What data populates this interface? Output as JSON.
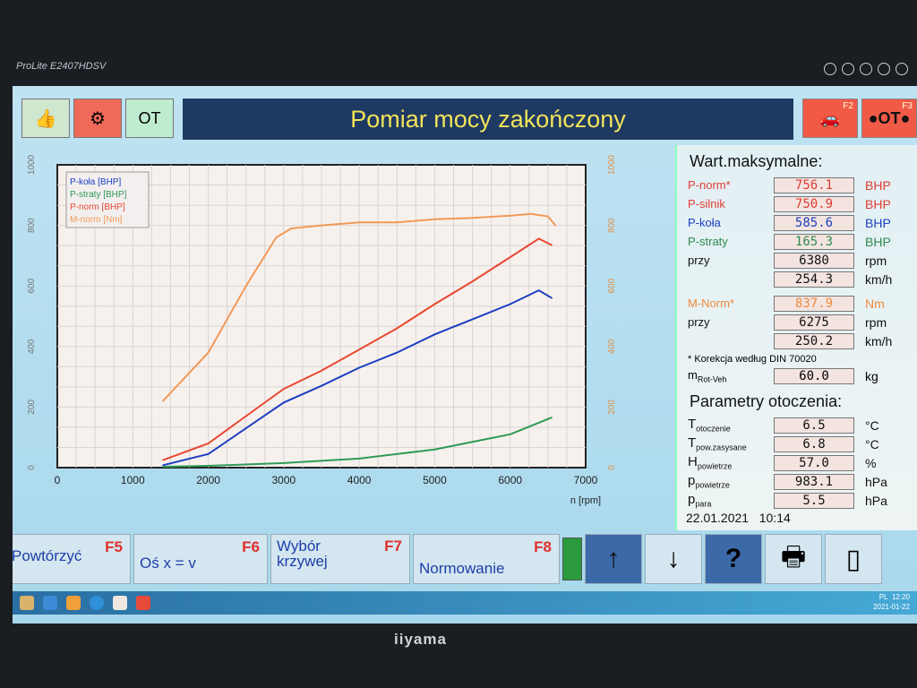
{
  "monitor": {
    "model": "ProLite E2407HDSV",
    "brand": "iiyama"
  },
  "header": {
    "title": "Pomiar mocy zakończony",
    "ot_label": "OT",
    "f2_key": "F2",
    "f3_key": "F3",
    "f3_label": "●OT●",
    "icons": [
      "thumbs-up-icon",
      "engine-icon",
      "car-icon"
    ]
  },
  "panel": {
    "max_title": "Wart.maksymalne:",
    "max_rows": [
      {
        "label": "P-norm*",
        "value": "756.1",
        "unit": "BHP",
        "color": "#e03c32"
      },
      {
        "label": "P-silnik",
        "value": "750.9",
        "unit": "BHP",
        "color": "#e03c32"
      },
      {
        "label": "P-koła",
        "value": "585.6",
        "unit": "BHP",
        "color": "#1c3fc0"
      },
      {
        "label": "P-straty",
        "value": "165.3",
        "unit": "BHP",
        "color": "#2e8a50"
      },
      {
        "label": "przy",
        "value": "6380",
        "unit": "rpm",
        "color": "#111111"
      },
      {
        "label": "",
        "value": "254.3",
        "unit": "km/h",
        "color": "#111111"
      }
    ],
    "torque_rows": [
      {
        "label": "M-Norm*",
        "value": "837.9",
        "unit": "Nm",
        "color": "#f08a3c"
      },
      {
        "label": "przy",
        "value": "6275",
        "unit": "rpm",
        "color": "#111111"
      },
      {
        "label": "",
        "value": "250.2",
        "unit": "km/h",
        "color": "#111111"
      }
    ],
    "note": "* Korekcja według DIN 70020",
    "mrot": {
      "label": "m",
      "sub": "Rot-Veh",
      "value": "60.0",
      "unit": "kg"
    },
    "env_title": "Parametry otoczenia:",
    "env_rows": [
      {
        "label": "T",
        "sub": "otoczenie",
        "value": "6.5",
        "unit": "°C"
      },
      {
        "label": "T",
        "sub": "pow.zasysane",
        "value": "6.8",
        "unit": "°C"
      },
      {
        "label": "H",
        "sub": "powietrze",
        "value": "57.0",
        "unit": "%"
      },
      {
        "label": "p",
        "sub": "powietrze",
        "value": "983.1",
        "unit": "hPa"
      },
      {
        "label": "p",
        "sub": "para",
        "value": "5.5",
        "unit": "hPa"
      }
    ],
    "datetime": "22.01.2021   10:14"
  },
  "buttons": [
    {
      "label": "Powtórzyć",
      "key": "F5"
    },
    {
      "label": "Oś x = v",
      "key": "F6"
    },
    {
      "label": "Wybór krzywej",
      "key": "F7"
    },
    {
      "label": "Normowanie",
      "key": "F8"
    }
  ],
  "icon_buttons": [
    "arrow-up-icon",
    "arrow-down-icon",
    "help-icon",
    "printer-icon",
    "exit-icon"
  ],
  "taskbar": {
    "lang": "PL",
    "time": "12:20",
    "date": "2021-01-22"
  },
  "chart_data": {
    "type": "line",
    "xlabel": "n [rpm]",
    "xlim": [
      0,
      7000
    ],
    "xticks": [
      "0",
      "1000",
      "2000",
      "3000",
      "4000",
      "5000",
      "6000",
      "7000"
    ],
    "ylim_left": [
      0,
      1000
    ],
    "yticks_left": [
      "0",
      "200",
      "400",
      "600",
      "800",
      "1000"
    ],
    "ylim_right": [
      0,
      1000
    ],
    "yticks_right": [
      "0",
      "200",
      "400",
      "600",
      "800",
      "1000"
    ],
    "grid": true,
    "legend": "top-left",
    "series": [
      {
        "name": "P-koła [BHP]",
        "axis": "left",
        "color": "#1c3fc0",
        "x": [
          1400,
          2000,
          2500,
          3000,
          3500,
          4000,
          4500,
          5000,
          5500,
          6000,
          6380,
          6550
        ],
        "y": [
          8,
          45,
          130,
          215,
          270,
          330,
          380,
          440,
          490,
          540,
          585.6,
          560
        ]
      },
      {
        "name": "P-straty [BHP]",
        "axis": "left",
        "color": "#2e9a55",
        "x": [
          1400,
          2000,
          3000,
          4000,
          5000,
          6000,
          6550
        ],
        "y": [
          3,
          6,
          15,
          30,
          60,
          110,
          165.3
        ]
      },
      {
        "name": "P-norm [BHP]",
        "axis": "left",
        "color": "#e84830",
        "x": [
          1400,
          2000,
          2500,
          3000,
          3500,
          4000,
          4500,
          5000,
          5500,
          6000,
          6380,
          6550
        ],
        "y": [
          25,
          80,
          170,
          260,
          320,
          390,
          460,
          540,
          615,
          695,
          756.1,
          735
        ]
      },
      {
        "name": "M-norm [Nm]",
        "axis": "right",
        "color": "#f29a58",
        "x": [
          1400,
          2000,
          2500,
          2900,
          3100,
          3500,
          4000,
          4500,
          5000,
          5500,
          6000,
          6275,
          6500,
          6600
        ],
        "y": [
          220,
          380,
          600,
          760,
          790,
          800,
          810,
          810,
          820,
          825,
          832,
          837.9,
          830,
          800
        ]
      }
    ]
  }
}
